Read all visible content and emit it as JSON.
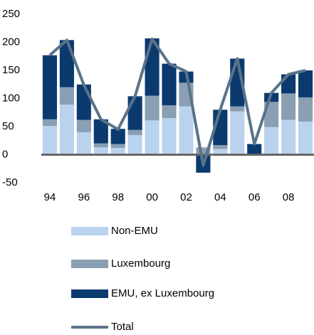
{
  "chart_data": {
    "type": "bar",
    "stacked": true,
    "categories": [
      "94",
      null,
      "96",
      null,
      "98",
      null,
      "00",
      null,
      "02",
      null,
      "04",
      null,
      "06",
      null,
      "08",
      null
    ],
    "series": [
      {
        "name": "Non-EMU",
        "color": "#b9d3ee",
        "values": [
          51,
          89,
          40,
          13,
          12,
          35,
          61,
          65,
          86,
          0,
          10,
          77,
          0,
          49,
          62,
          59
        ]
      },
      {
        "name": "Luxembourg",
        "color": "#8a9fb3",
        "values": [
          12,
          31,
          22,
          7,
          7,
          9,
          44,
          23,
          42,
          13,
          7,
          9,
          0,
          45,
          47,
          43
        ]
      },
      {
        "name": "EMU, ex Luxembourg",
        "color": "#0b3a6f",
        "values": [
          114,
          84,
          63,
          43,
          27,
          60,
          102,
          74,
          20,
          -32,
          63,
          85,
          19,
          16,
          34,
          48
        ]
      },
      {
        "name": "Total",
        "color": "#5b7389",
        "type": "line",
        "values": [
          177,
          204,
          124,
          63,
          45,
          104,
          206,
          162,
          148,
          -19,
          80,
          171,
          19,
          110,
          143,
          150
        ]
      }
    ],
    "ylim": [
      -50,
      250
    ],
    "yticks": [
      -50,
      0,
      50,
      100,
      150,
      200,
      250
    ],
    "grid": false,
    "legend": "bottom"
  }
}
